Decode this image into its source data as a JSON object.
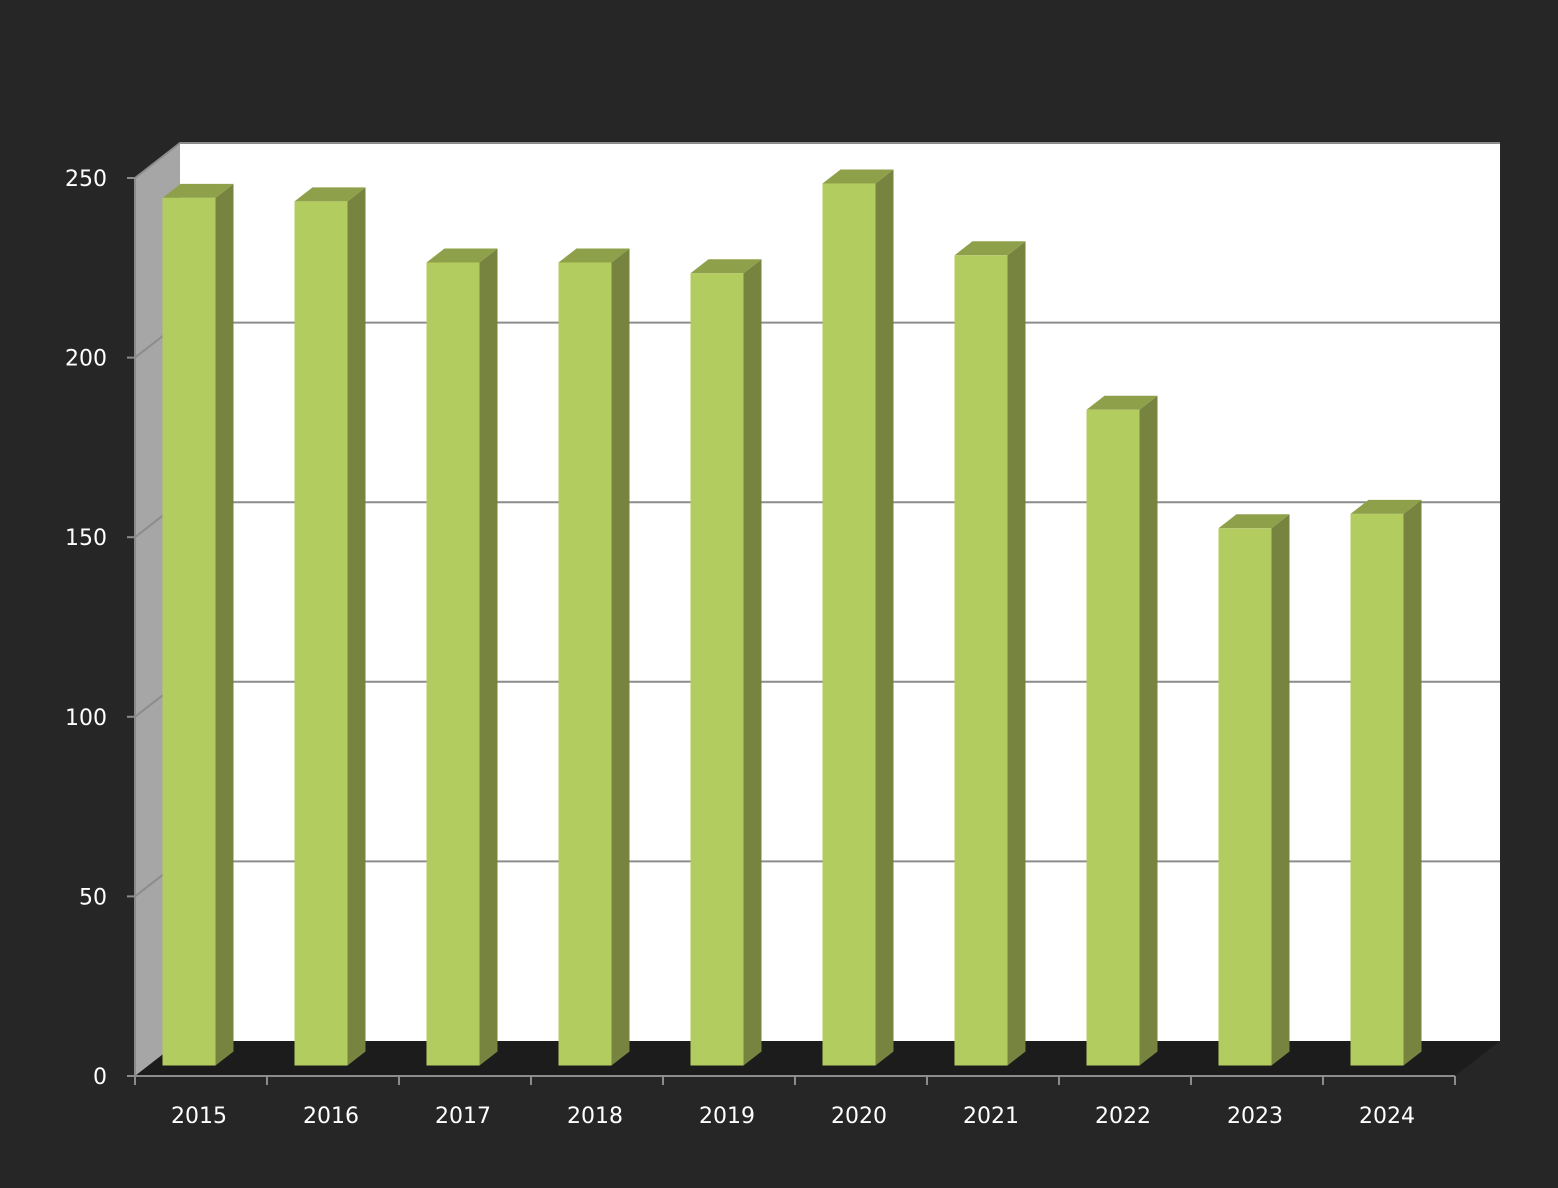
{
  "chart_data": {
    "type": "bar",
    "style": "3d-column",
    "categories": [
      "2015",
      "2016",
      "2017",
      "2018",
      "2019",
      "2020",
      "2021",
      "2022",
      "2023",
      "2024"
    ],
    "series": [
      {
        "values": [
          241,
          240,
          223,
          223,
          220,
          245,
          225,
          182,
          149,
          153
        ]
      }
    ],
    "title": "",
    "xlabel": "",
    "ylabel": "",
    "ylim": [
      0,
      250
    ],
    "yticks": [
      "0",
      "50",
      "100",
      "150",
      "200",
      "250"
    ],
    "grid": true,
    "legend": "none",
    "colors": {
      "background": "#262626",
      "plot_back_wall": "#ffffff",
      "plot_side_wall": "#a6a6a6",
      "floor": "#1c1c1c",
      "gridline": "#8c8c8c",
      "bar_front": "#b3cc5f",
      "bar_side": "#76843f",
      "bar_top": "#8fa04a",
      "text": "#ffffff"
    }
  }
}
